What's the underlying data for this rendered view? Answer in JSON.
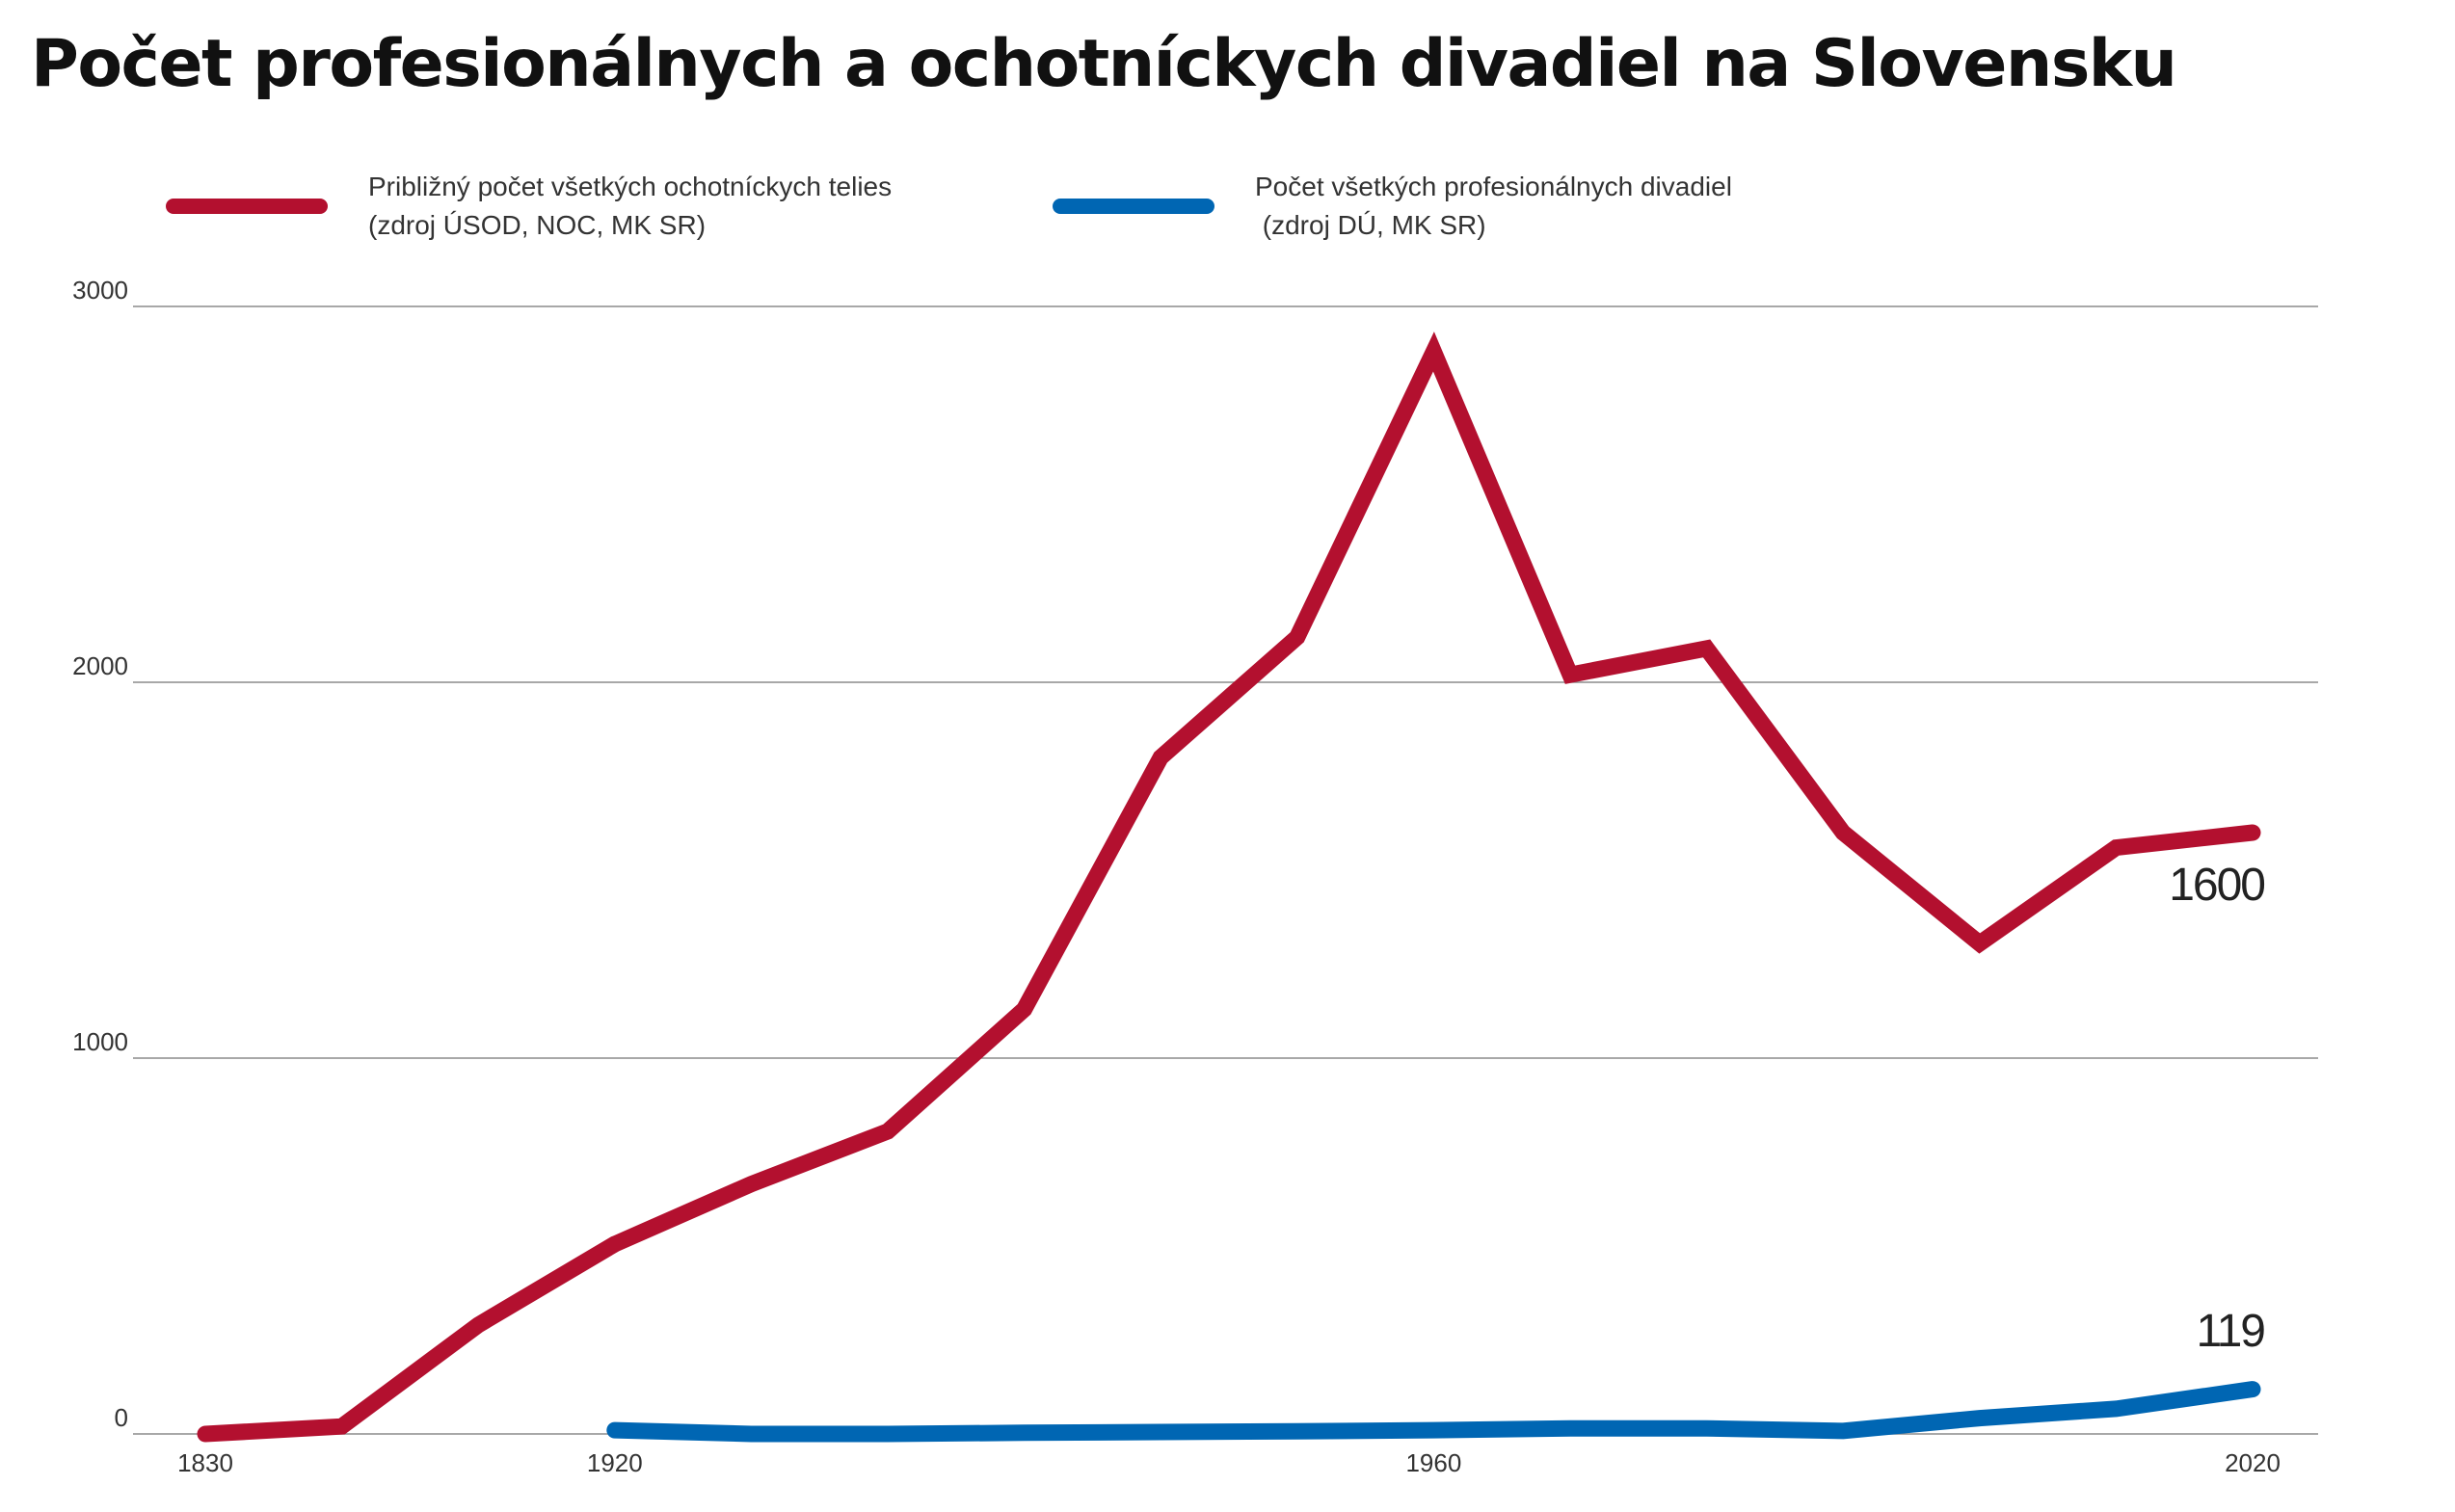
{
  "title": "Počet profesionálnych a ochotníckych divadiel na Slovensku",
  "legend": [
    {
      "line1": "Približný počet všetkých ochotníckych telies",
      "line2": "(zdroj ÚSOD, NOC, MK SR)",
      "color": "#b3102f"
    },
    {
      "line1": "Počet všetkých profesionálnych divadiel",
      "line2": " (zdroj DÚ, MK SR)",
      "color": "#0066b3"
    }
  ],
  "chart_data": {
    "type": "line",
    "title": "Počet profesionálnych a ochotníckych divadiel na Slovensku",
    "xlabel": "",
    "ylabel": "",
    "ylim": [
      0,
      3000
    ],
    "y_ticks": [
      0,
      1000,
      2000,
      3000
    ],
    "y_tick_labels": [
      "0",
      "1000",
      "2000",
      "3000"
    ],
    "x_tick_labels": [
      "1830",
      "1920",
      "1960",
      "2020"
    ],
    "grid": true,
    "legend_position": "top",
    "series": [
      {
        "name": "Približný počet všetkých ochotníckych telies (zdroj ÚSOD, NOC, MK SR)",
        "color": "#b3102f",
        "values": [
          0,
          20,
          290,
          505,
          665,
          805,
          1130,
          1800,
          2120,
          2880,
          2020,
          2090,
          1600,
          1305,
          1560,
          1600
        ],
        "end_label": "1600"
      },
      {
        "name": "Počet všetkých profesionálnych divadiel (zdroj DÚ, MK SR)",
        "color": "#0066b3",
        "values": [
          null,
          null,
          null,
          10,
          0,
          0,
          3,
          5,
          7,
          10,
          15,
          15,
          8,
          42,
          67,
          119
        ],
        "end_label": "119"
      }
    ]
  }
}
